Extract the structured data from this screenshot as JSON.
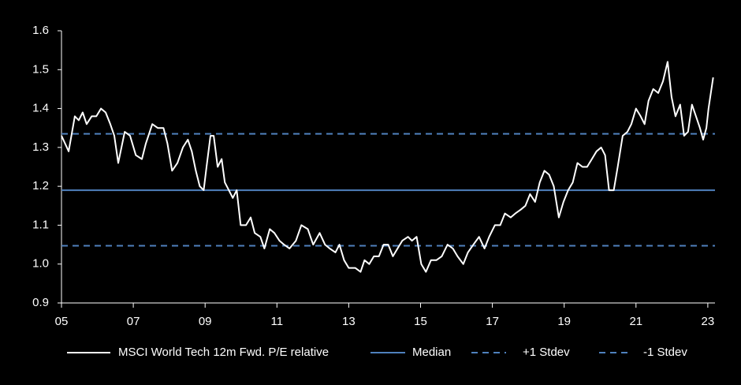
{
  "chart_data": {
    "type": "line",
    "series": [
      {
        "name": "MSCI World Tech 12m Fwd. P/E relative",
        "color": "#ffffff",
        "x": [
          2005.0,
          2005.2,
          2005.37,
          2005.48,
          2005.59,
          2005.7,
          2005.84,
          2005.97,
          2006.1,
          2006.23,
          2006.36,
          2006.47,
          2006.58,
          2006.76,
          2006.91,
          2007.07,
          2007.24,
          2007.35,
          2007.53,
          2007.68,
          2007.84,
          2007.95,
          2008.08,
          2008.23,
          2008.38,
          2008.52,
          2008.63,
          2008.74,
          2008.85,
          2008.96,
          2009.04,
          2009.15,
          2009.24,
          2009.35,
          2009.46,
          2009.55,
          2009.66,
          2009.77,
          2009.88,
          2009.99,
          2010.14,
          2010.27,
          2010.38,
          2010.54,
          2010.65,
          2010.8,
          2010.93,
          2011.07,
          2011.2,
          2011.35,
          2011.53,
          2011.68,
          2011.86,
          2012.01,
          2012.19,
          2012.34,
          2012.47,
          2012.63,
          2012.74,
          2012.87,
          2013.0,
          2013.18,
          2013.33,
          2013.44,
          2013.57,
          2013.7,
          2013.84,
          2013.97,
          2014.1,
          2014.23,
          2014.36,
          2014.49,
          2014.65,
          2014.76,
          2014.89,
          2015.02,
          2015.15,
          2015.29,
          2015.44,
          2015.59,
          2015.75,
          2015.9,
          2016.03,
          2016.19,
          2016.32,
          2016.47,
          2016.63,
          2016.78,
          2016.91,
          2017.07,
          2017.22,
          2017.35,
          2017.51,
          2017.64,
          2017.79,
          2017.92,
          2018.05,
          2018.19,
          2018.32,
          2018.45,
          2018.58,
          2018.71,
          2018.85,
          2018.98,
          2019.11,
          2019.24,
          2019.37,
          2019.51,
          2019.64,
          2019.77,
          2019.9,
          2020.03,
          2020.14,
          2020.25,
          2020.38,
          2020.49,
          2020.63,
          2020.76,
          2020.87,
          2021.0,
          2021.13,
          2021.24,
          2021.35,
          2021.48,
          2021.62,
          2021.75,
          2021.88,
          2021.99,
          2022.1,
          2022.23,
          2022.34,
          2022.45,
          2022.56,
          2022.67,
          2022.78,
          2022.87,
          2022.96,
          2023.02,
          2023.15
        ],
        "values": [
          1.33,
          1.29,
          1.38,
          1.37,
          1.39,
          1.36,
          1.38,
          1.38,
          1.4,
          1.39,
          1.36,
          1.33,
          1.26,
          1.34,
          1.33,
          1.28,
          1.27,
          1.31,
          1.36,
          1.35,
          1.35,
          1.31,
          1.24,
          1.26,
          1.3,
          1.32,
          1.29,
          1.24,
          1.2,
          1.19,
          1.25,
          1.33,
          1.33,
          1.25,
          1.27,
          1.21,
          1.19,
          1.17,
          1.19,
          1.1,
          1.1,
          1.12,
          1.08,
          1.07,
          1.04,
          1.09,
          1.08,
          1.06,
          1.05,
          1.04,
          1.06,
          1.1,
          1.09,
          1.05,
          1.08,
          1.05,
          1.04,
          1.03,
          1.05,
          1.01,
          0.99,
          0.99,
          0.98,
          1.01,
          1.0,
          1.02,
          1.02,
          1.05,
          1.05,
          1.02,
          1.04,
          1.06,
          1.07,
          1.06,
          1.07,
          1.0,
          0.98,
          1.01,
          1.01,
          1.02,
          1.05,
          1.04,
          1.02,
          1.0,
          1.03,
          1.05,
          1.07,
          1.04,
          1.07,
          1.1,
          1.1,
          1.13,
          1.12,
          1.13,
          1.14,
          1.15,
          1.18,
          1.16,
          1.21,
          1.24,
          1.23,
          1.2,
          1.12,
          1.16,
          1.19,
          1.21,
          1.26,
          1.25,
          1.25,
          1.27,
          1.29,
          1.3,
          1.28,
          1.19,
          1.19,
          1.25,
          1.33,
          1.34,
          1.36,
          1.4,
          1.38,
          1.36,
          1.42,
          1.45,
          1.44,
          1.47,
          1.52,
          1.43,
          1.38,
          1.41,
          1.33,
          1.34,
          1.41,
          1.38,
          1.35,
          1.32,
          1.35,
          1.4,
          1.48
        ]
      }
    ],
    "reference_lines": [
      {
        "name": "Median",
        "value": 1.19,
        "color": "#4f81bd",
        "dashed": false
      },
      {
        "name": "+1 Stdev",
        "value": 1.335,
        "color": "#4f81bd",
        "dashed": true
      },
      {
        "name": "-1 Stdev",
        "value": 1.047,
        "color": "#4f81bd",
        "dashed": true
      }
    ],
    "xlim": [
      2005,
      2023.2
    ],
    "xticks": [
      {
        "value": 2005,
        "label": "05"
      },
      {
        "value": 2007,
        "label": "07"
      },
      {
        "value": 2009,
        "label": "09"
      },
      {
        "value": 2011,
        "label": "11"
      },
      {
        "value": 2013,
        "label": "13"
      },
      {
        "value": 2015,
        "label": "15"
      },
      {
        "value": 2017,
        "label": "17"
      },
      {
        "value": 2019,
        "label": "19"
      },
      {
        "value": 2021,
        "label": "21"
      },
      {
        "value": 2023,
        "label": "23"
      }
    ],
    "ylim": [
      0.9,
      1.6
    ],
    "yticks": [
      {
        "value": 0.9,
        "label": "0.9"
      },
      {
        "value": 1.0,
        "label": "1.0"
      },
      1.1,
      1.2,
      1.3,
      1.4,
      1.5,
      1.6
    ]
  }
}
